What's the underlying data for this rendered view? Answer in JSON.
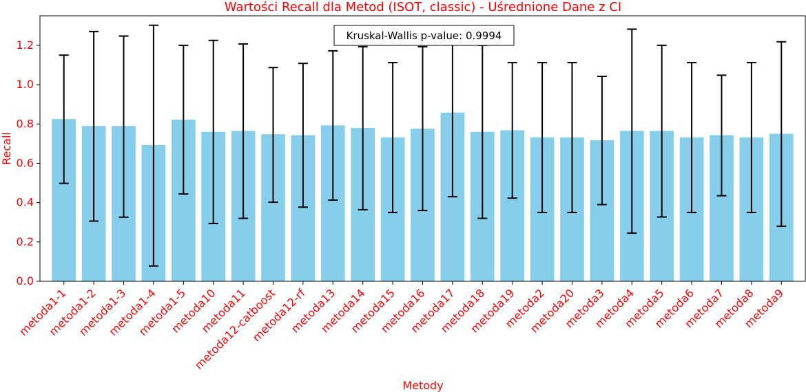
{
  "chart_data": {
    "type": "bar",
    "title": "Wartości Recall dla Metod (ISOT, classic) - Uśrednione Dane z CI",
    "xlabel": "Metody",
    "ylabel": "Recall",
    "ylim": [
      0,
      1.35
    ],
    "yticks": [
      "0.0",
      "0.2",
      "0.4",
      "0.6",
      "0.8",
      "1.0",
      "1.2"
    ],
    "annotation": "Kruskal-Wallis p-value: 0.9994",
    "grid": false,
    "colors": {
      "bar": "#87ceeb",
      "text_accent": "#ff0000",
      "error_bar": "#000000"
    },
    "categories": [
      "metoda1-1",
      "metoda1-2",
      "metoda1-3",
      "metoda1-4",
      "metoda1-5",
      "metoda10",
      "metoda11",
      "metoda12-catboost",
      "metoda12-rf",
      "metoda13",
      "metoda14",
      "metoda15",
      "metoda16",
      "metoda17",
      "metoda18",
      "metoda19",
      "metoda2",
      "metoda20",
      "metoda3",
      "metoda4",
      "metoda5",
      "metoda6",
      "metoda7",
      "metoda8",
      "metoda9"
    ],
    "values": [
      0.825,
      0.79,
      0.79,
      0.693,
      0.822,
      0.76,
      0.765,
      0.748,
      0.743,
      0.793,
      0.78,
      0.732,
      0.776,
      0.858,
      0.76,
      0.768,
      0.732,
      0.732,
      0.718,
      0.765,
      0.765,
      0.732,
      0.743,
      0.732,
      0.75
    ],
    "ci_low": [
      0.498,
      0.306,
      0.326,
      0.078,
      0.444,
      0.294,
      0.32,
      0.402,
      0.377,
      0.413,
      0.364,
      0.35,
      0.36,
      0.43,
      0.32,
      0.423,
      0.35,
      0.35,
      0.39,
      0.245,
      0.327,
      0.35,
      0.435,
      0.35,
      0.28
    ],
    "ci_high": [
      1.15,
      1.27,
      1.247,
      1.302,
      1.2,
      1.225,
      1.207,
      1.087,
      1.108,
      1.172,
      1.193,
      1.112,
      1.193,
      1.262,
      1.2,
      1.112,
      1.112,
      1.112,
      1.042,
      1.282,
      1.2,
      1.112,
      1.048,
      1.112,
      1.218
    ]
  }
}
